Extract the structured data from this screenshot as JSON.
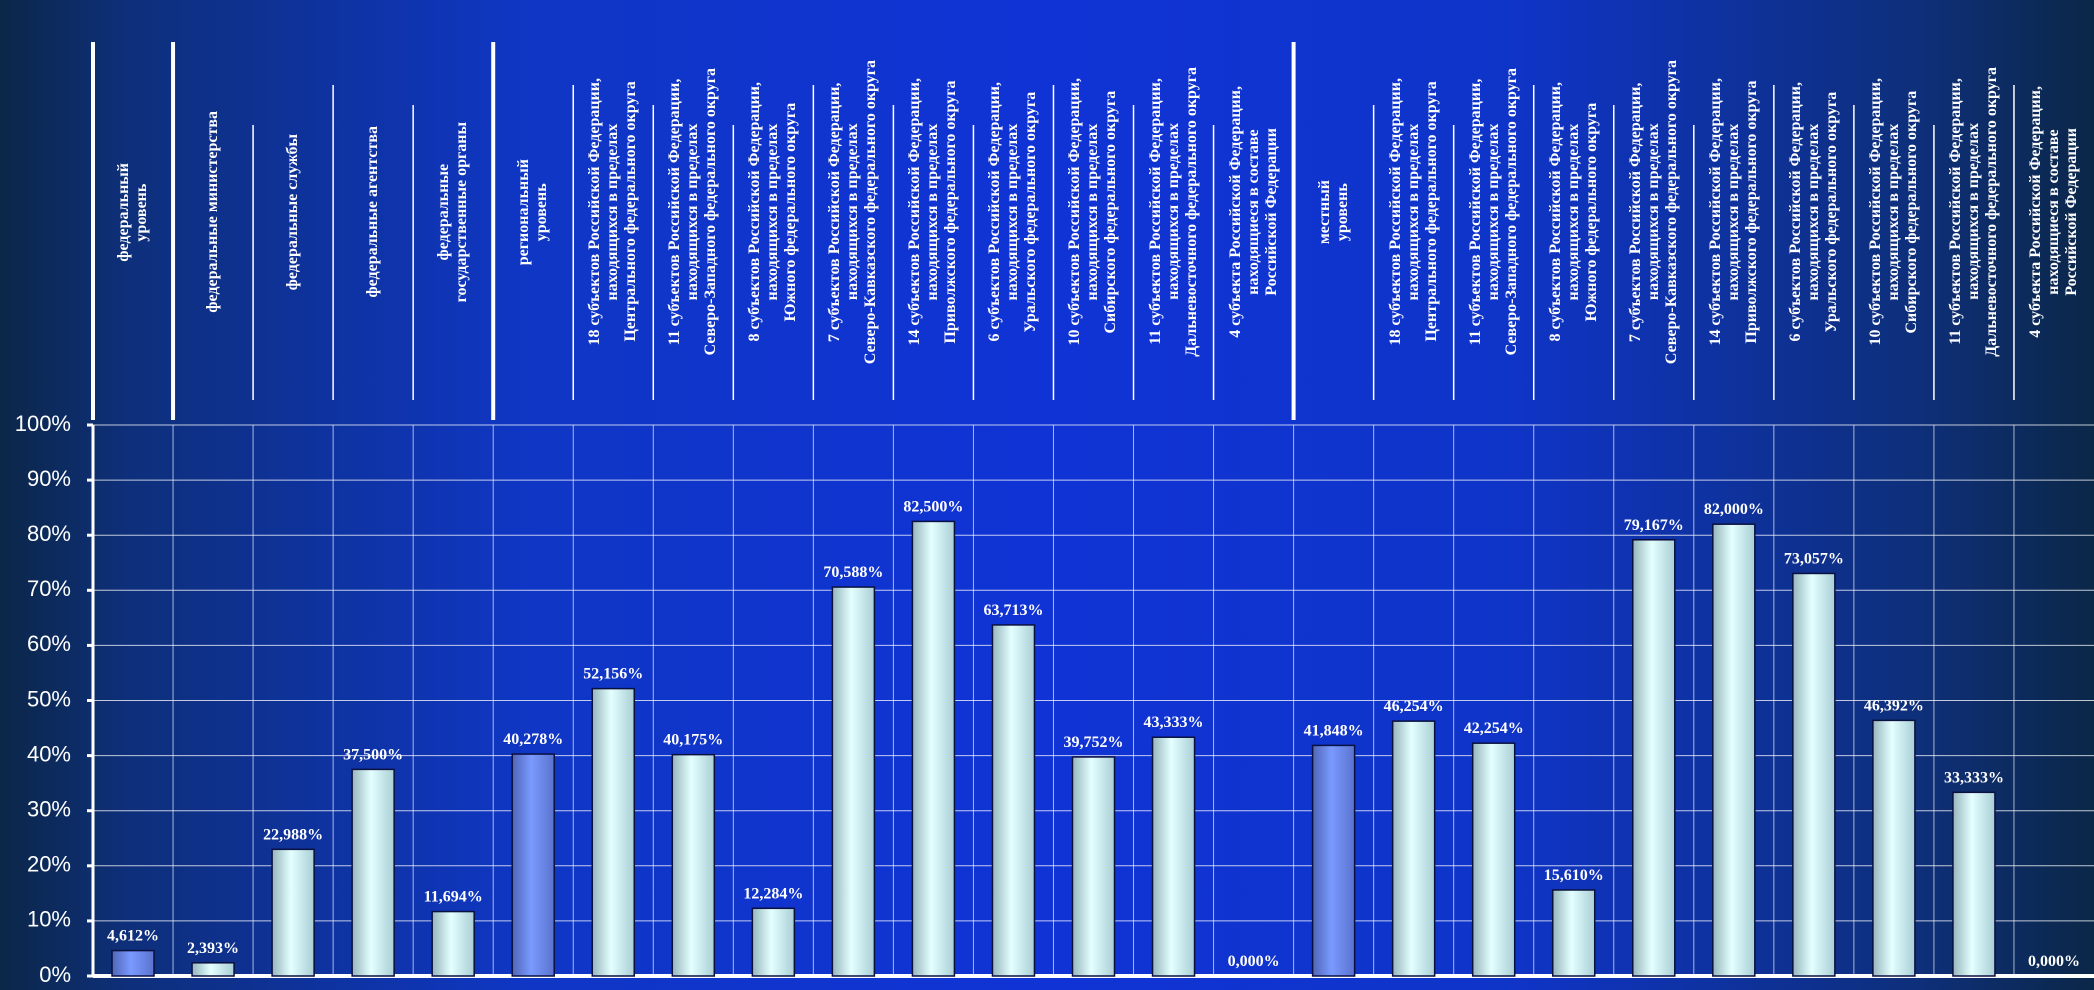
{
  "chart_data": {
    "type": "bar",
    "categories": [
      "федеральный\nуровень",
      "федеральные  министерства",
      "федеральные  службы",
      "федеральные  агентства",
      "федеральные\nгосударственные органы",
      "региональный\nуровень",
      "18 субъектов Российской Федерации,\nнаходящихся в пределах\nЦентрального федерального округа",
      "11 субъектов Российской Федерации,\nнаходящихся в пределах\nСеверо-Западного федерального округа",
      "8 субъектов Российской Федерации,\nнаходящихся в пределах\nЮжного федерального округа",
      "7 субъектов Российской Федерации,\nнаходящихся в пределах\nСеверо-Кавказского федерального округа",
      "14 субъектов Российской Федерации,\nнаходящихся в пределах\nПриволжского федерального округа",
      "6 субъектов Российской Федерации,\nнаходящихся в пределах\nУральского федерального округа",
      "10 субъектов Российской Федерации,\nнаходящихся в пределах\nСибирского федерального округа",
      "11 субъектов Российской Федерации,\nнаходящихся в пределах\nДальневосточного федерального округа",
      "4 субъекта Российской Федерации,\nнаходящиеся в составе\nРоссийской Федерации",
      "местный\nуровень",
      "18 субъектов Российской Федерации,\nнаходящихся в пределах\nЦентрального федерального округа",
      "11 субъектов Российской Федерации,\nнаходящихся в пределах\nСеверо-Западного федерального округа",
      "8 субъектов Российской Федерации,\nнаходящихся в пределах\nЮжного федерального округа",
      "7 субъектов Российской Федерации,\nнаходящихся в пределах\nСеверо-Кавказского федерального округа",
      "14 субъектов Российской Федерации,\nнаходящихся в пределах\nПриволжского федерального округа",
      "6 субъектов Российской Федерации,\nнаходящихся в пределах\nУральского федерального округа",
      "10 субъектов Российской Федерации,\nнаходящихся в пределах\nСибирского федерального округа",
      "11 субъектов Российской Федерации,\nнаходящихся в пределах\nДальневосточного федерального округа",
      "4 субъекта Российской Федерации,\nнаходящиеся в составе\nРоссийской Федерации"
    ],
    "values": [
      4.612,
      2.393,
      22.988,
      37.5,
      11.694,
      40.278,
      52.156,
      40.175,
      12.284,
      70.588,
      82.5,
      63.713,
      39.752,
      43.333,
      0,
      41.848,
      46.254,
      42.254,
      15.61,
      79.167,
      82,
      73.057,
      46.392,
      33.333,
      0
    ],
    "value_labels": [
      "4,612%",
      "2,393%",
      "22,988%",
      "37,500%",
      "11,694%",
      "40,278%",
      "52,156%",
      "40,175%",
      "12,284%",
      "70,588%",
      "82,500%",
      "63,713%",
      "39,752%",
      "43,333%",
      "0,000%",
      "41,848%",
      "46,254%",
      "42,254%",
      "15,610%",
      "79,167%",
      "82,000%",
      "73,057%",
      "46,392%",
      "33,333%",
      "0,000%"
    ],
    "colors": [
      "#6a86f2",
      "#c6f2fa",
      "#c6f2fa",
      "#c6f2fa",
      "#c6f2fa",
      "#6a86f2",
      "#c6f2fa",
      "#c6f2fa",
      "#c6f2fa",
      "#c6f2fa",
      "#c6f2fa",
      "#c6f2fa",
      "#c6f2fa",
      "#c6f2fa",
      "#c6f2fa",
      "#6a86f2",
      "#c6f2fa",
      "#c6f2fa",
      "#c6f2fa",
      "#c6f2fa",
      "#c6f2fa",
      "#c6f2fa",
      "#c6f2fa",
      "#c6f2fa",
      "#c6f2fa"
    ],
    "ylim": [
      0,
      100
    ],
    "yticks": [
      {
        "value": 0,
        "label": "0%"
      },
      {
        "value": 10,
        "label": "10%"
      },
      {
        "value": 20,
        "label": "20%"
      },
      {
        "value": 30,
        "label": "30%"
      },
      {
        "value": 40,
        "label": "40%"
      },
      {
        "value": 50,
        "label": "50%"
      },
      {
        "value": 60,
        "label": "60%"
      },
      {
        "value": 70,
        "label": "70%"
      },
      {
        "value": 80,
        "label": "80%"
      },
      {
        "value": 90,
        "label": "90%"
      },
      {
        "value": 100,
        "label": "100%"
      }
    ],
    "grid": true
  }
}
